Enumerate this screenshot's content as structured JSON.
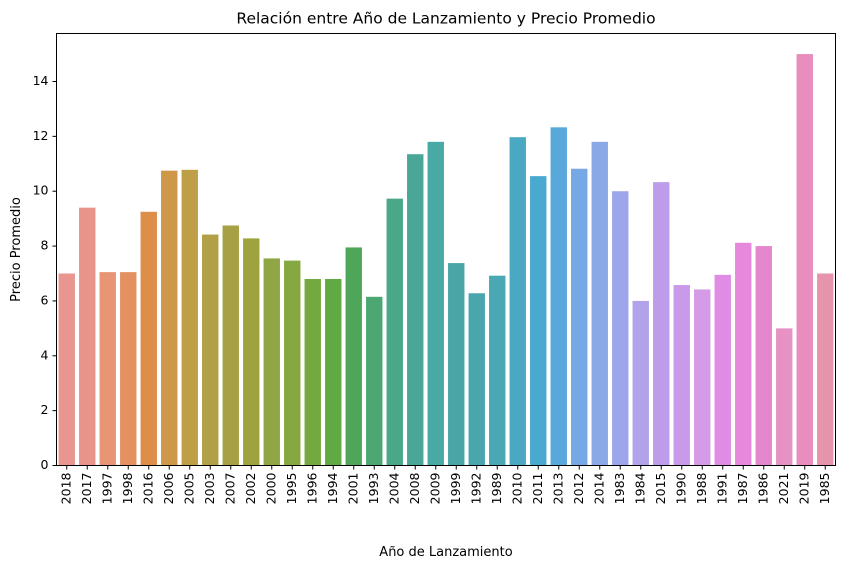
{
  "chart_data": {
    "type": "bar",
    "title": "Relación entre Año de Lanzamiento y Precio Promedio",
    "xlabel": "Año de Lanzamiento",
    "ylabel": "Precio Promedio",
    "ylim": [
      0,
      15.75
    ],
    "yticks": [
      "0",
      "2",
      "4",
      "6",
      "8",
      "10",
      "12",
      "14"
    ],
    "grid": false,
    "legend": "none",
    "categories": [
      "2018",
      "2017",
      "1997",
      "1998",
      "2016",
      "2006",
      "2005",
      "2003",
      "2007",
      "2002",
      "2000",
      "1995",
      "1996",
      "1994",
      "2001",
      "1993",
      "2004",
      "2008",
      "2009",
      "1999",
      "1992",
      "1989",
      "2010",
      "2011",
      "2013",
      "2012",
      "2014",
      "1983",
      "1984",
      "2015",
      "1990",
      "1988",
      "1991",
      "1987",
      "1986",
      "2021",
      "2019",
      "1985"
    ],
    "values": [
      7.0,
      9.4,
      7.05,
      7.05,
      9.25,
      10.75,
      10.78,
      8.42,
      8.75,
      8.28,
      7.55,
      7.47,
      6.8,
      6.8,
      7.95,
      6.15,
      9.73,
      11.35,
      11.8,
      7.38,
      6.28,
      6.92,
      11.97,
      10.55,
      12.33,
      10.82,
      11.8,
      10.0,
      6.0,
      10.33,
      6.58,
      6.42,
      6.95,
      8.12,
      8.0,
      5.0,
      15.0,
      7.0
    ],
    "colors": [
      "#ea9690",
      "#e9948b",
      "#e79575",
      "#e39160",
      "#dd8f4a",
      "#cf9849",
      "#bf9e48",
      "#b1a047",
      "#a7a044",
      "#9ea23f",
      "#90a644",
      "#85a841",
      "#74a942",
      "#60aa44",
      "#4ea65a",
      "#4da773",
      "#4aa888",
      "#4aa797",
      "#48a9a5",
      "#4aa5a6",
      "#49a6ac",
      "#4aa7b4",
      "#4aa8c2",
      "#4aa9cf",
      "#58a8dc",
      "#75a8e4",
      "#8aa8e6",
      "#9da6ea",
      "#b2a2ec",
      "#bd9ceb",
      "#c99aea",
      "#d69be7",
      "#e08ce5",
      "#e689dc",
      "#e487cf",
      "#e692c4",
      "#e88dbe",
      "#e594ab"
    ]
  }
}
